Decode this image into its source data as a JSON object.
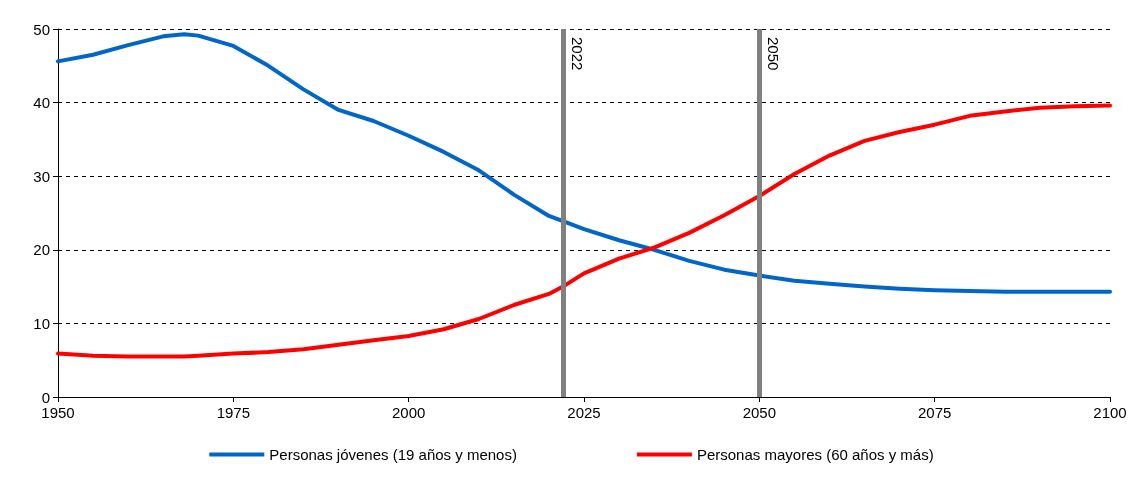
{
  "chart_data": {
    "type": "line",
    "x": [
      1950,
      1955,
      1960,
      1965,
      1968,
      1970,
      1975,
      1980,
      1985,
      1990,
      1995,
      2000,
      2005,
      2010,
      2015,
      2020,
      2022,
      2025,
      2030,
      2035,
      2040,
      2045,
      2050,
      2055,
      2060,
      2065,
      2070,
      2075,
      2080,
      2085,
      2090,
      2095,
      2100
    ],
    "series": [
      {
        "name": "Personas jóvenes (19 años y menos)",
        "color": "#0066cc",
        "values": [
          45.6,
          46.5,
          47.8,
          49.0,
          49.3,
          49.1,
          47.7,
          45.0,
          41.8,
          39.0,
          37.5,
          35.5,
          33.3,
          30.8,
          27.5,
          24.6,
          23.9,
          22.8,
          21.3,
          20.0,
          18.5,
          17.3,
          16.5,
          15.8,
          15.4,
          15.0,
          14.7,
          14.5,
          14.4,
          14.3,
          14.3,
          14.3,
          14.3
        ]
      },
      {
        "name": "Personas mayores (60 años y más)",
        "color": "#ff0000",
        "values": [
          5.9,
          5.6,
          5.5,
          5.5,
          5.5,
          5.6,
          5.9,
          6.1,
          6.5,
          7.1,
          7.7,
          8.3,
          9.2,
          10.6,
          12.5,
          14.0,
          15.0,
          16.8,
          18.8,
          20.3,
          22.3,
          24.7,
          27.3,
          30.3,
          32.8,
          34.8,
          36.0,
          37.0,
          38.2,
          38.8,
          39.3,
          39.5,
          39.6
        ]
      }
    ],
    "xlim": [
      1950,
      2100
    ],
    "xticks": [
      1950,
      1975,
      2000,
      2025,
      2050,
      2075,
      2100
    ],
    "ylim": [
      0,
      50
    ],
    "yticks": [
      0,
      10,
      20,
      30,
      40,
      50
    ],
    "ref_lines": [
      {
        "axis": "x",
        "value": 2022,
        "label": "2022",
        "color": "#808080"
      },
      {
        "axis": "x",
        "value": 2050,
        "label": "2050",
        "color": "#808080"
      }
    ],
    "grid": "y",
    "legend": "bottom",
    "marker": "none",
    "line_style": "solid"
  }
}
